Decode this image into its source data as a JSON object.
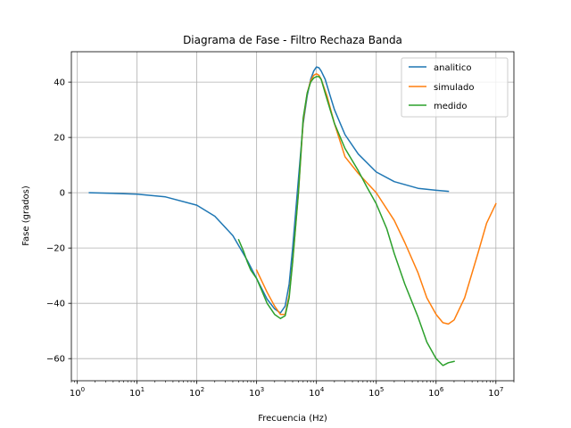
{
  "chart_data": {
    "type": "line",
    "title": "Diagrama de Fase - Filtro Rechaza Banda",
    "xlabel": "Frecuencia (Hz)",
    "ylabel": "Fase (grados)",
    "xscale": "log",
    "xlim": [
      0.8,
      20000000
    ],
    "ylim": [
      -68,
      51
    ],
    "grid": true,
    "legend_position": "top-right",
    "x_ticks": [
      {
        "value": 1,
        "base": "10",
        "exp": "0"
      },
      {
        "value": 10,
        "base": "10",
        "exp": "1"
      },
      {
        "value": 100,
        "base": "10",
        "exp": "2"
      },
      {
        "value": 1000,
        "base": "10",
        "exp": "3"
      },
      {
        "value": 10000,
        "base": "10",
        "exp": "4"
      },
      {
        "value": 100000,
        "base": "10",
        "exp": "5"
      },
      {
        "value": 1000000,
        "base": "10",
        "exp": "6"
      },
      {
        "value": 10000000,
        "base": "10",
        "exp": "7"
      }
    ],
    "y_ticks": [
      {
        "value": -60,
        "label": "−60"
      },
      {
        "value": -40,
        "label": "−40"
      },
      {
        "value": -20,
        "label": "−20"
      },
      {
        "value": 0,
        "label": "0"
      },
      {
        "value": 20,
        "label": "20"
      },
      {
        "value": 40,
        "label": "40"
      }
    ],
    "series": [
      {
        "name": "analitico",
        "color": "#1f77b4",
        "x": [
          1.6,
          10,
          30,
          100,
          200,
          400,
          700,
          1000,
          1500,
          2000,
          2500,
          3000,
          3500,
          4000,
          5000,
          6000,
          7000,
          8000,
          9000,
          10000,
          11000,
          12000,
          14000,
          17000,
          20000,
          30000,
          50000,
          100000,
          200000,
          500000,
          1000000,
          1600000
        ],
        "y": [
          0,
          -0.5,
          -1.5,
          -4.5,
          -8.5,
          -15.5,
          -24.5,
          -31,
          -38.5,
          -42,
          -43.5,
          -41,
          -33,
          -20,
          5,
          25,
          35,
          41,
          44,
          45.5,
          45.2,
          44,
          41,
          35,
          30,
          21,
          14,
          7.5,
          4,
          1.6,
          0.9,
          0.5
        ]
      },
      {
        "name": "simulado",
        "color": "#ff7f0e",
        "x": [
          1000,
          1500,
          2000,
          2500,
          3000,
          3500,
          4000,
          5000,
          6000,
          7000,
          8000,
          9000,
          10000,
          11000,
          12000,
          15000,
          20000,
          30000,
          50000,
          100000,
          200000,
          300000,
          500000,
          700000,
          1000000,
          1300000,
          1600000,
          2000000,
          3000000,
          5000000,
          7000000,
          10000000
        ],
        "y": [
          -28,
          -36,
          -41,
          -44,
          -44,
          -37,
          -25,
          0,
          26,
          36,
          40.5,
          42.5,
          43,
          42.5,
          41,
          35,
          25,
          13,
          7,
          0,
          -10,
          -18,
          -29,
          -38,
          -44,
          -47,
          -47.5,
          -46,
          -38,
          -22,
          -11,
          -4
        ]
      },
      {
        "name": "medido",
        "color": "#2ca02c",
        "x": [
          500,
          600,
          700,
          800,
          1000,
          1200,
          1500,
          2000,
          2500,
          3000,
          3500,
          4000,
          5000,
          6000,
          7000,
          8000,
          9000,
          10000,
          11000,
          12000,
          14000,
          17000,
          20000,
          30000,
          50000,
          70000,
          100000,
          150000,
          200000,
          300000,
          500000,
          700000,
          1000000,
          1300000,
          1600000,
          2000000
        ],
        "y": [
          -17,
          -21,
          -25,
          -28,
          -31,
          -35,
          -40,
          -44,
          -45.5,
          -44.5,
          -38,
          -25,
          0,
          27,
          36,
          40,
          41.5,
          42,
          42,
          41,
          36,
          30,
          25,
          16,
          8,
          2,
          -4,
          -13,
          -22,
          -33,
          -45,
          -54,
          -60,
          -62.5,
          -61.5,
          -61
        ]
      }
    ]
  }
}
